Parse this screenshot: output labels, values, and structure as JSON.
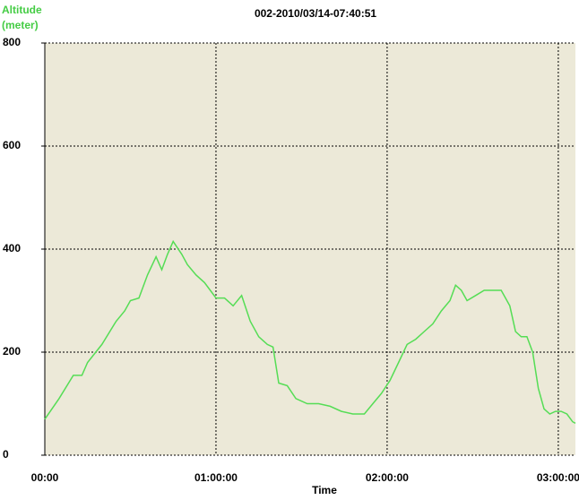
{
  "chart_data": {
    "type": "line",
    "title": "002-2010/03/14-07:40:51",
    "y_label": "Altitude",
    "y_unit": "(meter)",
    "x_label": "Time",
    "xlim": [
      0,
      186
    ],
    "ylim": [
      0,
      800
    ],
    "xticks": [
      {
        "value": 0,
        "label": "00:00"
      },
      {
        "value": 60,
        "label": "01:00:00"
      },
      {
        "value": 120,
        "label": "02:00:00"
      },
      {
        "value": 180,
        "label": "03:00:00"
      }
    ],
    "yticks": [
      0,
      200,
      400,
      600,
      800
    ],
    "grid": true,
    "series": [
      {
        "color": "#55dd55",
        "x": [
          0,
          5,
          10,
          13,
          15,
          20,
          25,
          28,
          30,
          33,
          36,
          39,
          41,
          43,
          45,
          48,
          50,
          53,
          56,
          58,
          60,
          63,
          66,
          69,
          72,
          75,
          78,
          80,
          82,
          85,
          88,
          92,
          96,
          100,
          104,
          108,
          112,
          115,
          118,
          121,
          124,
          127,
          130,
          133,
          136,
          139,
          142,
          144,
          146,
          148,
          151,
          154,
          157,
          160,
          163,
          165,
          167,
          169,
          171,
          173,
          175,
          177,
          179,
          181,
          183,
          185,
          186
        ],
        "values": [
          70,
          110,
          155,
          155,
          180,
          215,
          260,
          280,
          300,
          305,
          350,
          385,
          360,
          390,
          415,
          390,
          370,
          350,
          335,
          320,
          305,
          305,
          290,
          310,
          260,
          230,
          215,
          210,
          140,
          135,
          110,
          100,
          100,
          95,
          85,
          80,
          80,
          100,
          120,
          145,
          180,
          215,
          225,
          240,
          255,
          280,
          300,
          330,
          320,
          300,
          310,
          320,
          320,
          320,
          290,
          240,
          230,
          230,
          200,
          130,
          90,
          80,
          85,
          85,
          80,
          65,
          62
        ]
      }
    ]
  }
}
